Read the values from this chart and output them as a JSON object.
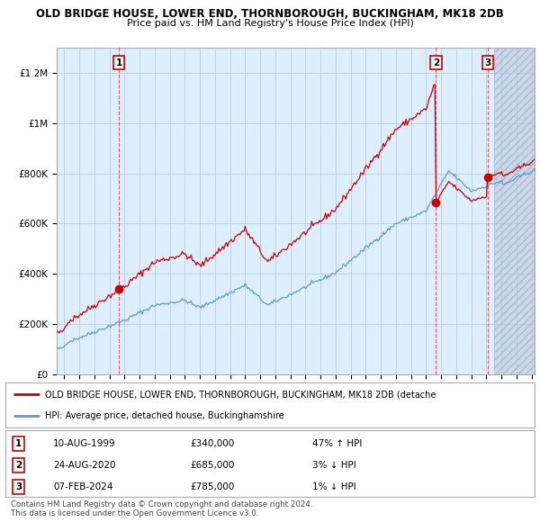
{
  "title1": "OLD BRIDGE HOUSE, LOWER END, THORNBOROUGH, BUCKINGHAM, MK18 2DB",
  "title2": "Price paid vs. HM Land Registry's House Price Index (HPI)",
  "ylabel_ticks": [
    "£0",
    "£200K",
    "£400K",
    "£600K",
    "£800K",
    "£1M",
    "£1.2M"
  ],
  "ylim": [
    0,
    1300000
  ],
  "yticks": [
    0,
    200000,
    400000,
    600000,
    800000,
    1000000,
    1200000
  ],
  "legend_red": "OLD BRIDGE HOUSE, LOWER END, THORNBOROUGH, BUCKINGHAM, MK18 2DB (detache",
  "legend_blue": "HPI: Average price, detached house, Buckinghamshire",
  "footer1": "Contains HM Land Registry data © Crown copyright and database right 2024.",
  "footer2": "This data is licensed under the Open Government Licence v3.0.",
  "red_color": "#cc0000",
  "blue_color": "#6699cc",
  "chart_bg": "#ddeeff",
  "bg_color": "#ffffff",
  "grid_color": "#bbccdd",
  "future_start": 2024.5,
  "sale1_year": 1999.62,
  "sale1_price": 340000,
  "sale2_year": 2020.65,
  "sale2_price": 685000,
  "sale3_year": 2024.1,
  "sale3_price": 785000,
  "xmin": 1995.5,
  "xmax": 2027.2
}
